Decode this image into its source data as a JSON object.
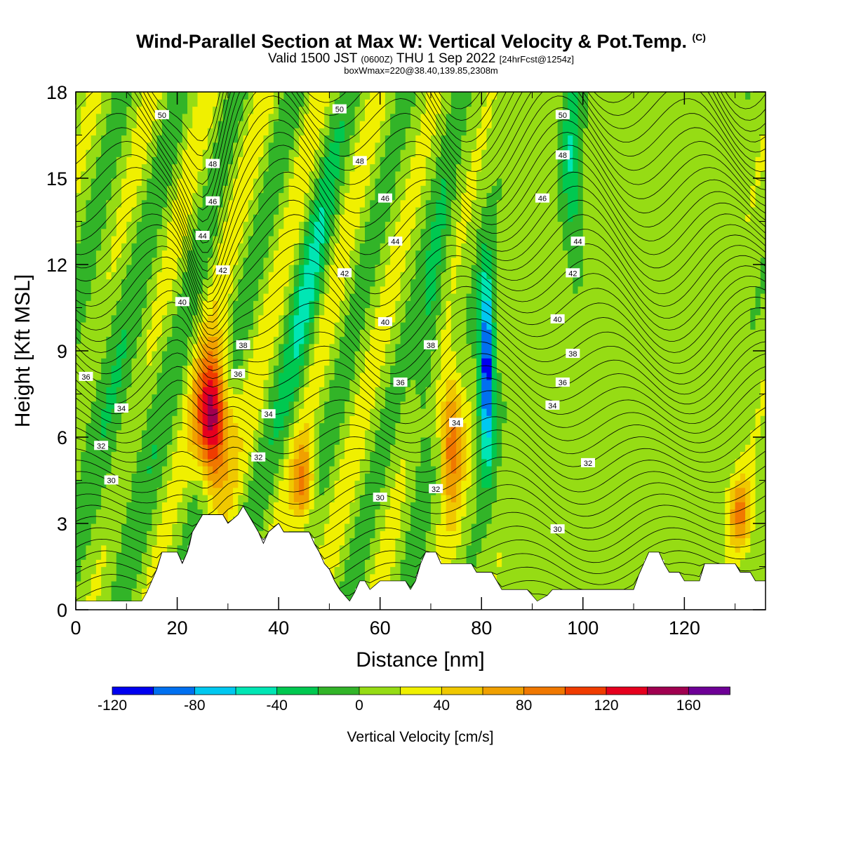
{
  "header": {
    "title": "Wind-Parallel Section at Max W: Vertical Velocity & Pot.Temp.",
    "copyright": "(C)",
    "valid_prefix": "Valid 1500 JST",
    "valid_utc": "(0600Z)",
    "valid_date": "THU 1 Sep 2022",
    "forecast": "[24hrFcst@1254z]",
    "boxwmax": "boxWmax=220@38.40,139.85,2308m"
  },
  "chart_data": {
    "type": "heatmap",
    "title": "Wind-Parallel Section at Max W: Vertical Velocity & Pot.Temp.",
    "xlabel": "Distance [nm]",
    "ylabel": "Height [Kft MSL]",
    "xlim": [
      0,
      136
    ],
    "ylim": [
      0,
      18
    ],
    "x_ticks": [
      "0",
      "20",
      "40",
      "60",
      "80",
      "100",
      "120"
    ],
    "y_ticks": [
      "0",
      "3",
      "6",
      "9",
      "12",
      "15",
      "18"
    ],
    "colorbar": {
      "label": "Vertical Velocity [cm/s]",
      "ticks": [
        "-120",
        "-80",
        "-40",
        "0",
        "40",
        "80",
        "120",
        "160"
      ],
      "levels": [
        -120,
        -100,
        -80,
        -60,
        -40,
        -20,
        0,
        20,
        40,
        60,
        80,
        100,
        120,
        140,
        160,
        180
      ],
      "colors": [
        "#0000f0",
        "#0070f0",
        "#00c8f0",
        "#00e6b4",
        "#00c850",
        "#32b428",
        "#96dc14",
        "#f0f000",
        "#f0c800",
        "#f0a000",
        "#f07800",
        "#f03c00",
        "#e6001e",
        "#a00050",
        "#6e0096"
      ]
    },
    "updrafts": [
      {
        "x": 27,
        "z": 6.5,
        "w": 170
      },
      {
        "x": 45,
        "z": 4.5,
        "w": 80
      },
      {
        "x": 74,
        "z": 6.0,
        "w": 90
      },
      {
        "x": 131,
        "z": 3.5,
        "w": 80
      }
    ],
    "downdrafts": [
      {
        "x": 81,
        "z": 8.5,
        "w": -110
      },
      {
        "x": 46,
        "z": 11.0,
        "w": -60
      },
      {
        "x": 98,
        "z": 15.0,
        "w": -60
      }
    ],
    "terrain": [
      [
        0,
        0.3
      ],
      [
        13,
        0.3
      ],
      [
        14,
        0.6
      ],
      [
        15,
        1.0
      ],
      [
        16,
        1.4
      ],
      [
        17,
        2.0
      ],
      [
        20,
        2.0
      ],
      [
        21,
        1.6
      ],
      [
        22,
        2.0
      ],
      [
        22.5,
        2.3
      ],
      [
        23,
        2.7
      ],
      [
        24,
        3.0
      ],
      [
        25,
        3.3
      ],
      [
        29,
        3.3
      ],
      [
        30,
        3.0
      ],
      [
        32,
        3.3
      ],
      [
        33,
        3.6
      ],
      [
        34,
        3.3
      ],
      [
        35,
        3.0
      ],
      [
        36,
        2.7
      ],
      [
        37,
        2.3
      ],
      [
        38,
        2.7
      ],
      [
        40,
        3.0
      ],
      [
        41,
        2.7
      ],
      [
        46,
        2.7
      ],
      [
        47,
        2.3
      ],
      [
        48,
        2.0
      ],
      [
        49,
        1.6
      ],
      [
        50,
        1.4
      ],
      [
        51,
        1.0
      ],
      [
        52,
        0.7
      ],
      [
        53,
        0.5
      ],
      [
        54,
        0.3
      ],
      [
        55,
        0.6
      ],
      [
        56,
        1.0
      ],
      [
        57,
        1.0
      ],
      [
        58,
        0.7
      ],
      [
        60,
        1.0
      ],
      [
        65,
        1.0
      ],
      [
        66,
        0.7
      ],
      [
        67,
        1.0
      ],
      [
        68,
        1.6
      ],
      [
        69,
        2.0
      ],
      [
        71,
        2.0
      ],
      [
        72,
        1.6
      ],
      [
        78,
        1.6
      ],
      [
        79,
        1.3
      ],
      [
        82,
        1.3
      ],
      [
        83,
        1.0
      ],
      [
        84,
        0.7
      ],
      [
        89,
        0.7
      ],
      [
        90,
        0.5
      ],
      [
        91,
        0.3
      ],
      [
        93,
        0.5
      ],
      [
        94,
        0.7
      ],
      [
        103,
        0.7
      ],
      [
        105,
        0.7
      ],
      [
        110,
        0.7
      ],
      [
        111,
        1.2
      ],
      [
        112,
        1.6
      ],
      [
        113,
        2.0
      ],
      [
        115,
        2.0
      ],
      [
        116,
        1.6
      ],
      [
        117,
        1.3
      ],
      [
        119,
        1.3
      ],
      [
        120,
        1.0
      ],
      [
        123,
        1.0
      ],
      [
        124,
        1.6
      ],
      [
        130,
        1.6
      ],
      [
        131,
        1.3
      ],
      [
        133,
        1.3
      ],
      [
        134,
        1.0
      ],
      [
        136,
        1.0
      ]
    ],
    "theta_labels": [
      {
        "text": "50",
        "x": 17,
        "z": 17.2
      },
      {
        "text": "48",
        "x": 27,
        "z": 15.5
      },
      {
        "text": "46",
        "x": 27,
        "z": 14.2
      },
      {
        "text": "44",
        "x": 25,
        "z": 13.0
      },
      {
        "text": "42",
        "x": 29,
        "z": 11.8
      },
      {
        "text": "40",
        "x": 21,
        "z": 10.7
      },
      {
        "text": "38",
        "x": 33,
        "z": 9.2
      },
      {
        "text": "36",
        "x": 32,
        "z": 8.2
      },
      {
        "text": "36",
        "x": 2,
        "z": 8.1
      },
      {
        "text": "34",
        "x": 9,
        "z": 7.0
      },
      {
        "text": "34",
        "x": 38,
        "z": 6.8
      },
      {
        "text": "32",
        "x": 5,
        "z": 5.7
      },
      {
        "text": "32",
        "x": 36,
        "z": 5.3
      },
      {
        "text": "30",
        "x": 7,
        "z": 4.5
      },
      {
        "text": "50",
        "x": 52,
        "z": 17.4
      },
      {
        "text": "48",
        "x": 56,
        "z": 15.6
      },
      {
        "text": "46",
        "x": 61,
        "z": 14.3
      },
      {
        "text": "44",
        "x": 63,
        "z": 12.8
      },
      {
        "text": "42",
        "x": 53,
        "z": 11.7
      },
      {
        "text": "40",
        "x": 61,
        "z": 10.0
      },
      {
        "text": "38",
        "x": 70,
        "z": 9.2
      },
      {
        "text": "36",
        "x": 64,
        "z": 7.9
      },
      {
        "text": "34",
        "x": 75,
        "z": 6.5
      },
      {
        "text": "32",
        "x": 71,
        "z": 4.2
      },
      {
        "text": "30",
        "x": 60,
        "z": 3.9
      },
      {
        "text": "50",
        "x": 96,
        "z": 17.2
      },
      {
        "text": "48",
        "x": 96,
        "z": 15.8
      },
      {
        "text": "46",
        "x": 92,
        "z": 14.3
      },
      {
        "text": "44",
        "x": 99,
        "z": 12.8
      },
      {
        "text": "42",
        "x": 98,
        "z": 11.7
      },
      {
        "text": "40",
        "x": 95,
        "z": 10.1
      },
      {
        "text": "38",
        "x": 98,
        "z": 8.9
      },
      {
        "text": "36",
        "x": 96,
        "z": 7.9
      },
      {
        "text": "34",
        "x": 94,
        "z": 7.1
      },
      {
        "text": "32",
        "x": 101,
        "z": 5.1
      },
      {
        "text": "30",
        "x": 95,
        "z": 2.8
      }
    ]
  }
}
